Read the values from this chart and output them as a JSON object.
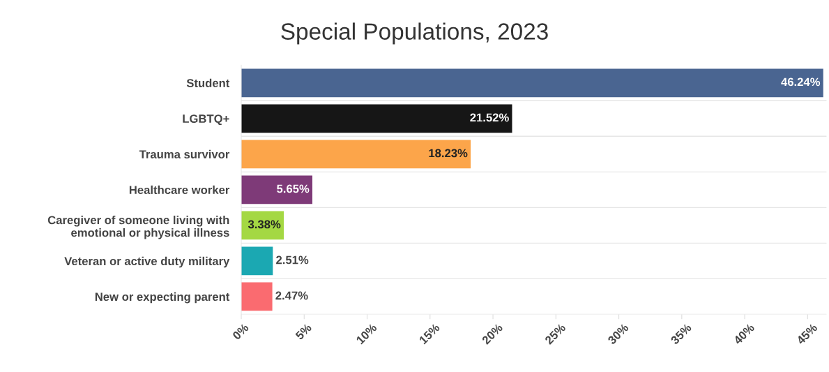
{
  "chart_data": {
    "type": "bar",
    "orientation": "horizontal",
    "title": "Special Populations, 2023",
    "categories": [
      "Student",
      "LGBTQ+",
      "Trauma survivor",
      "Healthcare worker",
      "Caregiver of someone living with\nemotional or physical illness",
      "Veteran or active duty military",
      "New or expecting parent"
    ],
    "values": [
      46.24,
      21.52,
      18.23,
      5.65,
      3.38,
      2.51,
      2.47
    ],
    "value_labels": [
      "46.24%",
      "21.52%",
      "18.23%",
      "5.65%",
      "3.38%",
      "2.51%",
      "2.47%"
    ],
    "colors": [
      "#4a6591",
      "#161616",
      "#fca54a",
      "#7e3a78",
      "#a4d843",
      "#1ba8b2",
      "#fa6b70"
    ],
    "xlim": [
      0,
      46.5
    ],
    "xticks": [
      {
        "value": 0,
        "label": "0%"
      },
      {
        "value": 5,
        "label": "5%"
      },
      {
        "value": 10,
        "label": "10%"
      },
      {
        "value": 15,
        "label": "15%"
      },
      {
        "value": 20,
        "label": "20%"
      },
      {
        "value": 25,
        "label": "25%"
      },
      {
        "value": 30,
        "label": "30%"
      },
      {
        "value": 35,
        "label": "35%"
      },
      {
        "value": 40,
        "label": "40%"
      },
      {
        "value": 45,
        "label": "45%"
      }
    ],
    "grid": "y"
  }
}
